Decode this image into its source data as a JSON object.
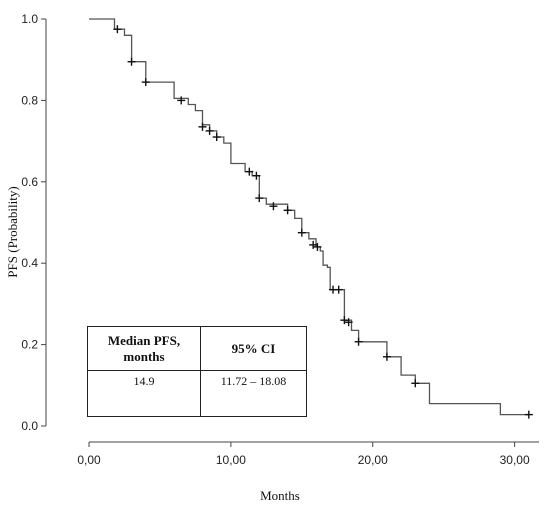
{
  "chart_data": {
    "type": "line",
    "subtype": "kaplan-meier step curve",
    "xlabel": "Months",
    "ylabel": "PFS (Probability)",
    "xlim": [
      0,
      32
    ],
    "ylim": [
      0,
      1.0
    ],
    "x_ticks": [
      0,
      10,
      20,
      30
    ],
    "x_tick_labels": [
      "0,00",
      "10,00",
      "20,00",
      "30,00"
    ],
    "y_ticks": [
      0,
      0.2,
      0.4,
      0.6,
      0.8,
      1.0
    ],
    "y_tick_labels": [
      "0.0",
      "0.2",
      "0.4",
      "0.6",
      "0.8",
      "1.0"
    ],
    "grid": false,
    "line_color": "#555555",
    "series": [
      {
        "x": [
          0,
          1.8,
          1.8,
          2.5,
          2.5,
          3.0,
          3.0,
          4.0,
          4.0,
          6.0,
          6.0,
          7.0,
          7.0,
          7.5,
          7.5,
          8.0,
          8.0,
          8.5,
          8.5,
          9.0,
          9.0,
          9.5,
          9.5,
          10.0,
          10.0,
          11.0,
          11.0,
          11.5,
          11.5,
          12.0,
          12.0,
          12.5,
          12.5,
          14.0,
          14.0,
          14.5,
          14.5,
          15.0,
          15.0,
          15.5,
          15.5,
          16.0,
          16.0,
          16.3,
          16.3,
          16.5,
          16.5,
          16.8,
          16.8,
          17.0,
          17.0,
          18.0,
          18.0,
          18.5,
          18.5,
          19.0,
          19.0,
          21.0,
          21.0,
          22.0,
          22.0,
          23.0,
          23.0,
          24.0,
          24.0,
          29.0,
          29.0,
          31.0
        ],
        "y": [
          1.0,
          1.0,
          0.975,
          0.975,
          0.96,
          0.96,
          0.895,
          0.895,
          0.845,
          0.845,
          0.805,
          0.805,
          0.79,
          0.79,
          0.775,
          0.775,
          0.74,
          0.74,
          0.725,
          0.725,
          0.71,
          0.71,
          0.695,
          0.695,
          0.645,
          0.645,
          0.625,
          0.625,
          0.615,
          0.615,
          0.56,
          0.56,
          0.545,
          0.545,
          0.53,
          0.53,
          0.51,
          0.51,
          0.475,
          0.475,
          0.46,
          0.46,
          0.44,
          0.44,
          0.43,
          0.43,
          0.395,
          0.395,
          0.39,
          0.39,
          0.335,
          0.335,
          0.26,
          0.26,
          0.235,
          0.235,
          0.207,
          0.207,
          0.17,
          0.17,
          0.125,
          0.125,
          0.105,
          0.105,
          0.055,
          0.055,
          0.028,
          0.028
        ]
      }
    ],
    "censored": [
      {
        "x": 2.0,
        "y": 0.975
      },
      {
        "x": 3.0,
        "y": 0.895
      },
      {
        "x": 4.0,
        "y": 0.845
      },
      {
        "x": 6.5,
        "y": 0.8
      },
      {
        "x": 8.0,
        "y": 0.735
      },
      {
        "x": 8.5,
        "y": 0.725
      },
      {
        "x": 9.0,
        "y": 0.71
      },
      {
        "x": 11.3,
        "y": 0.625
      },
      {
        "x": 11.8,
        "y": 0.615
      },
      {
        "x": 12.0,
        "y": 0.56
      },
      {
        "x": 13.0,
        "y": 0.54
      },
      {
        "x": 14.0,
        "y": 0.53
      },
      {
        "x": 15.0,
        "y": 0.475
      },
      {
        "x": 15.8,
        "y": 0.445
      },
      {
        "x": 16.1,
        "y": 0.44
      },
      {
        "x": 17.2,
        "y": 0.335
      },
      {
        "x": 17.6,
        "y": 0.335
      },
      {
        "x": 18.0,
        "y": 0.26
      },
      {
        "x": 18.3,
        "y": 0.255
      },
      {
        "x": 19.0,
        "y": 0.207
      },
      {
        "x": 21.0,
        "y": 0.17
      },
      {
        "x": 23.0,
        "y": 0.105
      },
      {
        "x": 31.0,
        "y": 0.028
      }
    ]
  },
  "table": {
    "headers": [
      "Median PFS, months",
      "95% CI"
    ],
    "row": [
      "14.9",
      "11.72 – 18.08"
    ]
  }
}
